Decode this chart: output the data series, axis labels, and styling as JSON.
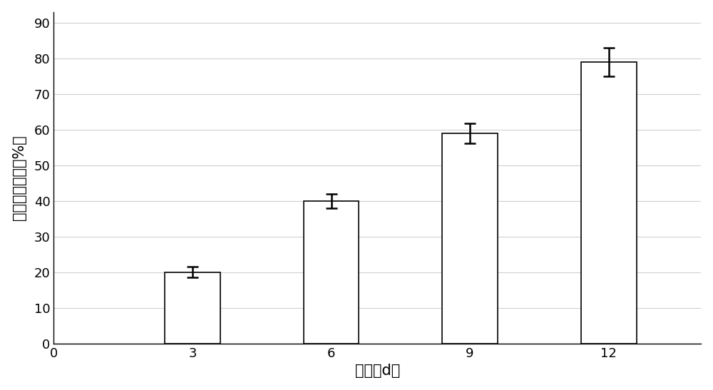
{
  "categories": [
    3,
    6,
    9,
    12
  ],
  "values": [
    20,
    40,
    59,
    79
  ],
  "errors": [
    1.5,
    2.0,
    2.8,
    4.0
  ],
  "bar_color": "#ffffff",
  "bar_edgecolor": "#000000",
  "bar_width": 1.2,
  "xlabel": "时间（d）",
  "ylabel": "石油炃降解率（%）",
  "xlim": [
    0,
    14
  ],
  "ylim": [
    0,
    93
  ],
  "yticks": [
    0,
    10,
    20,
    30,
    40,
    50,
    60,
    70,
    80,
    90
  ],
  "xticks": [
    0,
    3,
    6,
    9,
    12
  ],
  "grid_color": "#d0d0d0",
  "background_color": "#ffffff",
  "figure_bg": "#ffffff",
  "xlabel_fontsize": 15,
  "ylabel_fontsize": 15,
  "tick_fontsize": 13,
  "error_capsize": 6,
  "error_linewidth": 1.8,
  "error_color": "#000000"
}
